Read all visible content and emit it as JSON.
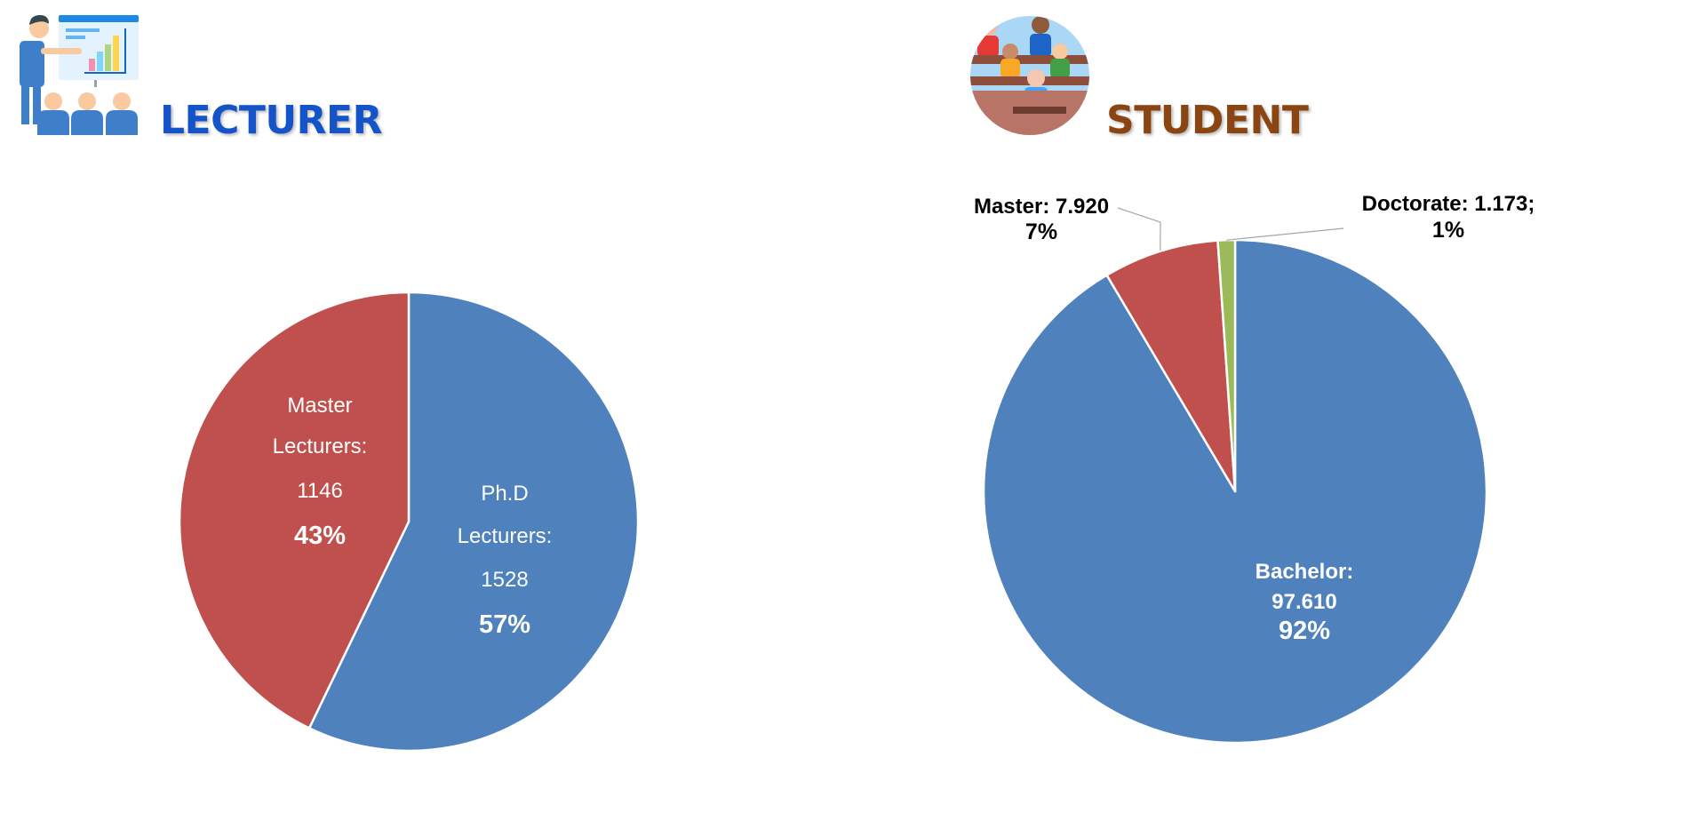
{
  "colors": {
    "blue_slice": "#4F81BD",
    "red_slice": "#C0504D",
    "green_slice": "#9BBB59",
    "lecturer_title": "#1553C8",
    "student_title": "#8B4513"
  },
  "lecturer": {
    "title": "LECTURER",
    "icon": "teacher-presentation-icon"
  },
  "student": {
    "title": "STUDENT",
    "icon": "classroom-students-icon"
  },
  "chart_data": [
    {
      "type": "pie",
      "title": "LECTURER",
      "start": "12 o'clock",
      "direction": "clockwise",
      "slices": [
        {
          "name": "Ph.D Lecturers",
          "value": 1528,
          "percent": 57,
          "color": "#4F81BD",
          "label_lines": [
            "Ph.D",
            "Lecturers:",
            "1528"
          ],
          "percent_label": "57%"
        },
        {
          "name": "Master Lecturers",
          "value": 1146,
          "percent": 43,
          "color": "#C0504D",
          "label_lines": [
            "Master",
            "Lecturers:",
            "1146"
          ],
          "percent_label": "43%"
        }
      ]
    },
    {
      "type": "pie",
      "title": "STUDENT",
      "start": "12 o'clock",
      "direction": "clockwise",
      "slices": [
        {
          "name": "Bachelor",
          "value": 97610,
          "percent": 92,
          "color": "#4F81BD",
          "label_lines": [
            "Bachelor:",
            "97.610"
          ],
          "percent_label": "92%"
        },
        {
          "name": "Master",
          "value": 7920,
          "percent": 7,
          "color": "#C0504D",
          "label_lines": [
            "Master: 7.920"
          ],
          "percent_label": "7%"
        },
        {
          "name": "Doctorate",
          "value": 1173,
          "percent": 1,
          "color": "#9BBB59",
          "label_lines": [
            "Doctorate: 1.173;"
          ],
          "percent_label": "1%"
        }
      ]
    }
  ]
}
